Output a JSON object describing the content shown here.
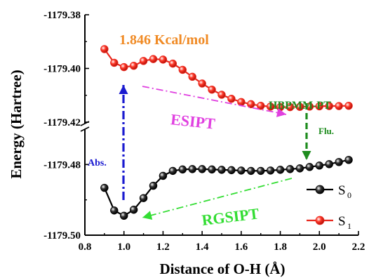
{
  "chart_data": {
    "type": "line",
    "xlabel": "Distance of O-H (Å)",
    "ylabel": "Energy (Hartree)",
    "xlim": [
      0.8,
      2.2
    ],
    "x_ticks": [
      "0.8",
      "1.0",
      "1.2",
      "1.4",
      "1.6",
      "1.8",
      "2.0",
      "2.2"
    ],
    "broken_y_axis": true,
    "upper_panel": {
      "ylim": [
        -1179.42,
        -1179.38
      ],
      "y_ticks": [
        "-1179.38",
        "-1179.40",
        "-1179.42"
      ]
    },
    "lower_panel": {
      "ylim": [
        -1179.5,
        -1179.47
      ],
      "y_ticks": [
        "-1179.48",
        "-1179.50"
      ]
    },
    "grid": false,
    "legend_position": "bottom-right",
    "x": [
      0.9,
      0.95,
      1.0,
      1.05,
      1.1,
      1.15,
      1.2,
      1.25,
      1.3,
      1.35,
      1.4,
      1.45,
      1.5,
      1.55,
      1.6,
      1.65,
      1.7,
      1.75,
      1.8,
      1.85,
      1.9,
      1.95,
      2.0,
      2.05,
      2.1,
      2.15
    ],
    "series": [
      {
        "name": "S0",
        "panel": "lower",
        "color": "#000000",
        "values": [
          -1179.4866,
          -1179.493,
          -1179.4945,
          -1179.4928,
          -1179.4895,
          -1179.486,
          -1179.4832,
          -1179.4818,
          -1179.4814,
          -1179.4813,
          -1179.4813,
          -1179.4814,
          -1179.4815,
          -1179.4816,
          -1179.4817,
          -1179.4818,
          -1179.4818,
          -1179.4817,
          -1179.4815,
          -1179.4813,
          -1179.4811,
          -1179.4807,
          -1179.4803,
          -1179.4799,
          -1179.4793,
          -1179.4787
        ]
      },
      {
        "name": "S1",
        "panel": "upper",
        "color": "#e8281e",
        "values": [
          -1179.3928,
          -1179.3979,
          -1179.3995,
          -1179.399,
          -1179.3972,
          -1179.3965,
          -1179.3967,
          -1179.3982,
          -1179.4005,
          -1179.4031,
          -1179.4056,
          -1179.4079,
          -1179.4098,
          -1179.4113,
          -1179.4125,
          -1179.4133,
          -1179.4139,
          -1179.4142,
          -1179.4144,
          -1179.4144,
          -1179.4143,
          -1179.4142,
          -1179.4141,
          -1179.414,
          -1179.414,
          -1179.4139
        ]
      }
    ],
    "legend": [
      {
        "label": "S",
        "subscript": "0",
        "color": "#000000"
      },
      {
        "label": "S",
        "subscript": "1",
        "color": "#e8281e"
      }
    ],
    "annotations": {
      "barrier": {
        "text": "1.846 Kcal/mol",
        "color": "#f08a24"
      },
      "hbpmm": {
        "text": "HBPMM-PT",
        "color": "#1e8c1e"
      },
      "esipt": {
        "text": "ESIPT",
        "color": "#e040e0"
      },
      "rgsipt": {
        "text": "RGSIPT",
        "color": "#33dd33"
      },
      "abs": {
        "text": "Abs.",
        "color": "#1a1ad0"
      },
      "flu": {
        "text": "Flu.",
        "color": "#1e8c1e"
      }
    }
  }
}
